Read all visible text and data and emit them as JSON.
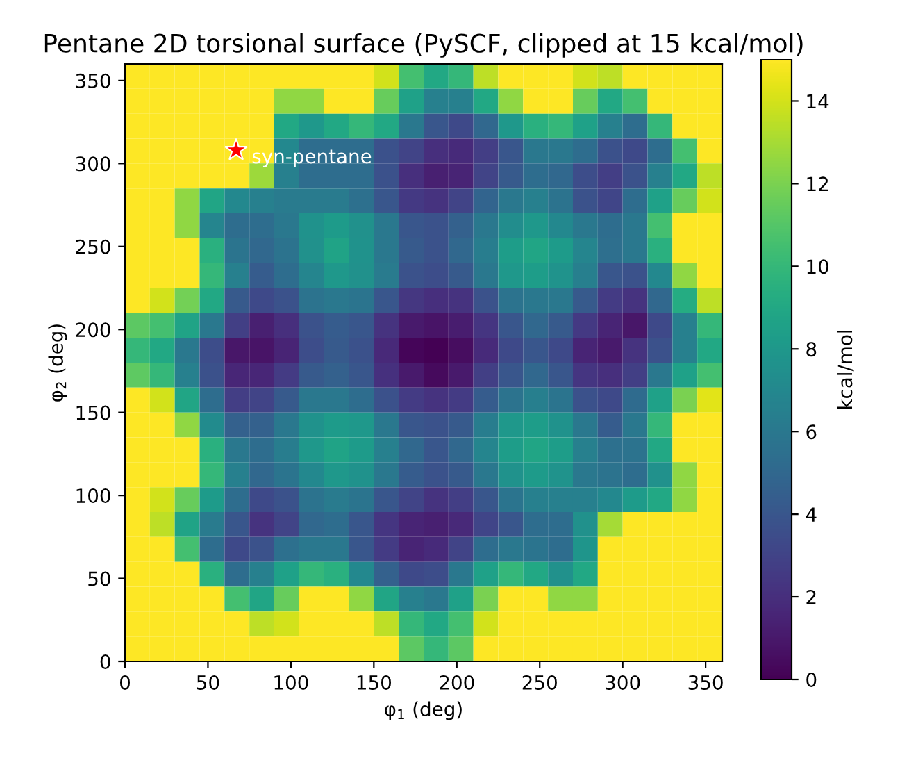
{
  "chart_data": {
    "type": "heatmap",
    "title": "Pentane 2D torsional surface (PySCF, clipped at 15 kcal/mol)",
    "xlabel": "φ$_{1}$ (deg)",
    "ylabel": "φ$_{2}$ (deg)",
    "clabel": "kcal/mol",
    "xlim": [
      0,
      360
    ],
    "ylim": [
      0,
      360
    ],
    "xticks": [
      0,
      50,
      100,
      150,
      200,
      250,
      300,
      350
    ],
    "yticks": [
      0,
      50,
      100,
      150,
      200,
      250,
      300,
      350
    ],
    "clim": [
      0,
      15
    ],
    "cticks": [
      0,
      2,
      4,
      6,
      8,
      10,
      12,
      14
    ],
    "annotations": [
      {
        "text": "syn-pentane",
        "x": 67,
        "y": 308
      }
    ],
    "cells": [
      [
        15,
        15,
        15,
        15,
        15,
        15,
        15,
        15,
        15,
        15,
        14,
        10.5,
        9,
        10,
        13.5,
        15,
        15,
        15,
        14,
        13.5,
        15,
        15,
        15,
        15
      ],
      [
        15,
        15,
        15,
        15,
        15,
        15,
        12.5,
        12.5,
        15,
        15,
        11.5,
        8.5,
        6.5,
        6.5,
        9,
        12.5,
        15,
        15,
        11.5,
        9,
        10.5,
        15,
        15,
        15
      ],
      [
        15,
        15,
        15,
        15,
        15,
        15,
        9,
        8,
        9,
        10,
        9,
        6,
        4,
        3.3,
        5,
        8,
        9.5,
        10,
        8.5,
        6.5,
        5.3,
        10,
        15,
        15
      ],
      [
        15,
        15,
        15,
        15,
        15,
        15,
        7,
        5.3,
        5.3,
        5.3,
        3.7,
        3,
        2,
        1.8,
        2.7,
        4,
        6,
        6,
        5.3,
        3.7,
        3.3,
        5.3,
        10.5,
        15
      ],
      [
        15,
        15,
        15,
        15,
        15,
        12.8,
        6.5,
        5.3,
        5.3,
        5.3,
        3.7,
        2,
        1.3,
        1.5,
        3,
        4.2,
        5.3,
        5,
        3.5,
        2.7,
        3.8,
        6.5,
        9,
        13.5
      ],
      [
        15,
        15,
        12.5,
        8.8,
        7,
        6.5,
        6.2,
        6.2,
        6.2,
        5.5,
        4,
        2.5,
        2.2,
        3,
        4.8,
        6,
        6.5,
        5.7,
        3.8,
        3.1,
        5.3,
        8.5,
        11.5,
        14
      ],
      [
        15,
        15,
        12.5,
        6.8,
        5.3,
        5.3,
        6,
        7.6,
        8.2,
        7.5,
        6,
        4,
        3.8,
        4.6,
        6,
        7.3,
        8,
        7,
        6,
        5.3,
        6,
        10.5,
        15,
        15
      ],
      [
        15,
        15,
        15,
        9.5,
        5.8,
        5,
        5.7,
        7.5,
        8.7,
        7.6,
        6,
        4.2,
        3.8,
        5,
        6.3,
        8.3,
        8.8,
        8.2,
        6.8,
        5.4,
        6,
        9.5,
        15,
        15
      ],
      [
        15,
        15,
        15,
        10,
        6.5,
        4.3,
        5.3,
        6.8,
        8,
        7.5,
        6.2,
        3.8,
        3.5,
        4.2,
        6,
        8,
        8.3,
        7.7,
        6.4,
        4,
        3.8,
        7,
        12.5,
        15
      ],
      [
        15,
        14,
        11.8,
        9,
        4.2,
        3.3,
        3.8,
        5.7,
        6,
        5.8,
        4,
        2.4,
        2,
        2.2,
        3.8,
        5.7,
        6,
        6,
        4.2,
        2.6,
        2.2,
        5,
        9.2,
        13.5
      ],
      [
        11.2,
        10.5,
        8.7,
        6,
        2.8,
        1.3,
        2,
        3.8,
        4.3,
        4,
        2.2,
        1,
        0.8,
        1.2,
        2.3,
        4,
        5,
        4.2,
        2.5,
        1.5,
        0.9,
        3.3,
        6.5,
        10
      ],
      [
        10,
        9,
        6,
        3.5,
        0.9,
        0.8,
        1.5,
        3.5,
        4.2,
        3.7,
        1.7,
        0.2,
        0,
        0.5,
        1.8,
        3.3,
        4,
        3.3,
        1.5,
        1,
        2.2,
        3.7,
        6.5,
        9
      ],
      [
        11.3,
        10,
        6.5,
        3.7,
        1.6,
        1.6,
        2.6,
        4.2,
        4.6,
        4,
        2.1,
        1,
        0.4,
        1,
        2.8,
        4,
        5,
        4,
        2.3,
        2,
        2.8,
        6,
        8.5,
        10.5
      ],
      [
        15,
        14,
        8.8,
        5.3,
        2.7,
        3,
        4.2,
        6,
        6,
        5.3,
        3.7,
        2.6,
        2.2,
        2.6,
        4.3,
        5.7,
        6.4,
        5.8,
        3.7,
        3.3,
        5.2,
        8.5,
        12,
        14.3
      ],
      [
        15,
        15,
        12.5,
        7.2,
        4.6,
        4.6,
        6,
        7.6,
        8.2,
        8,
        6,
        4,
        3.8,
        4.2,
        6.3,
        8,
        8.3,
        7.6,
        6,
        4.3,
        6,
        10,
        15,
        15
      ],
      [
        15,
        15,
        15,
        9.5,
        6,
        5.3,
        6.3,
        8,
        8.7,
        8.2,
        6.5,
        5,
        4,
        5,
        6.8,
        8.3,
        8.8,
        8.3,
        6.5,
        5.5,
        5.7,
        9,
        15,
        15
      ],
      [
        15,
        15,
        15,
        10,
        6.5,
        5,
        5.8,
        7,
        8,
        7.6,
        6,
        4.3,
        3.8,
        4.2,
        6,
        7.6,
        8.2,
        7.7,
        6,
        5.7,
        5.3,
        7.5,
        12.5,
        15
      ],
      [
        15,
        14,
        11.5,
        8.2,
        5.3,
        3.3,
        3.8,
        5.7,
        6.2,
        5.8,
        4,
        3,
        2.2,
        2.7,
        4,
        5.8,
        6.5,
        6.5,
        6.5,
        7,
        8.2,
        9,
        12.5,
        15
      ],
      [
        15,
        13.5,
        8.7,
        6.2,
        4,
        2.2,
        3,
        5,
        5.3,
        4,
        2.3,
        1.5,
        1.3,
        1.7,
        3.1,
        4,
        5.3,
        5.3,
        7.5,
        13,
        15,
        15,
        15,
        15
      ],
      [
        15,
        15,
        10.5,
        5.3,
        3.3,
        3.8,
        5.5,
        6,
        6,
        4,
        2.6,
        1.5,
        1.8,
        3,
        5.3,
        6,
        5.8,
        5.3,
        7.8,
        15,
        15,
        15,
        15,
        15
      ],
      [
        15,
        15,
        15,
        9.5,
        5.3,
        6.5,
        8.5,
        10,
        9.5,
        7,
        4.6,
        3.3,
        3.5,
        6,
        8.5,
        10,
        9,
        7.5,
        9,
        15,
        15,
        15,
        15,
        15
      ],
      [
        15,
        15,
        15,
        15,
        10.5,
        8.8,
        11.5,
        15,
        15,
        12.5,
        8.8,
        6.5,
        6,
        8.5,
        12,
        15,
        15,
        12.5,
        12.5,
        15,
        15,
        15,
        15,
        15
      ],
      [
        15,
        15,
        15,
        15,
        15,
        13.5,
        14,
        15,
        15,
        15,
        13.5,
        10,
        9,
        10.5,
        14,
        15,
        15,
        15,
        15,
        15,
        15,
        15,
        15,
        15
      ],
      [
        15,
        15,
        15,
        15,
        15,
        15,
        15,
        15,
        15,
        15,
        15,
        11.2,
        10,
        11.2,
        15,
        15,
        15,
        15,
        15,
        15,
        15,
        15,
        15,
        15
      ]
    ]
  }
}
